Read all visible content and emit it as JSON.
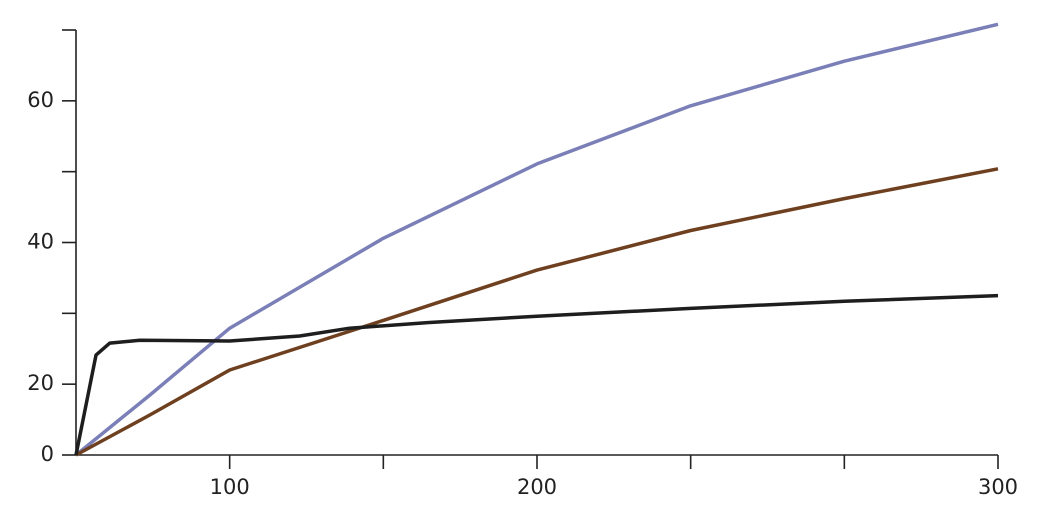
{
  "chart_data": {
    "type": "line",
    "scale": "tick-indexed",
    "xlim": [
      50,
      300
    ],
    "xticks": [
      100,
      200,
      300
    ],
    "xminor": [
      150,
      233.33,
      266.67
    ],
    "ylim": [
      0,
      70
    ],
    "yticks": [
      0,
      20,
      40,
      60
    ],
    "yminor": [
      30,
      50,
      70
    ],
    "series": [
      {
        "color": "#7a7fb8",
        "x": [
          50,
          74,
          100,
          150,
          200,
          233.33,
          266.67,
          300
        ],
        "values": [
          0,
          16.9,
          27.9,
          40.6,
          51.1,
          59.3,
          65.6,
          70.8
        ]
      },
      {
        "color": "#6e4020",
        "x": [
          50,
          74,
          100,
          150,
          200,
          233.33,
          266.67,
          300
        ],
        "values": [
          0,
          11.3,
          22,
          29,
          36.1,
          41.7,
          46.2,
          50.4
        ]
      },
      {
        "color": "#1e1e1e",
        "x": [
          50,
          56.5,
          61,
          70.8,
          100,
          122.8,
          139,
          165,
          200,
          233.33,
          266.67,
          300
        ],
        "values": [
          0,
          24.1,
          25.8,
          26.2,
          26.1,
          26.8,
          27.9,
          28.7,
          29.6,
          30.7,
          31.7,
          32.5
        ]
      }
    ]
  }
}
